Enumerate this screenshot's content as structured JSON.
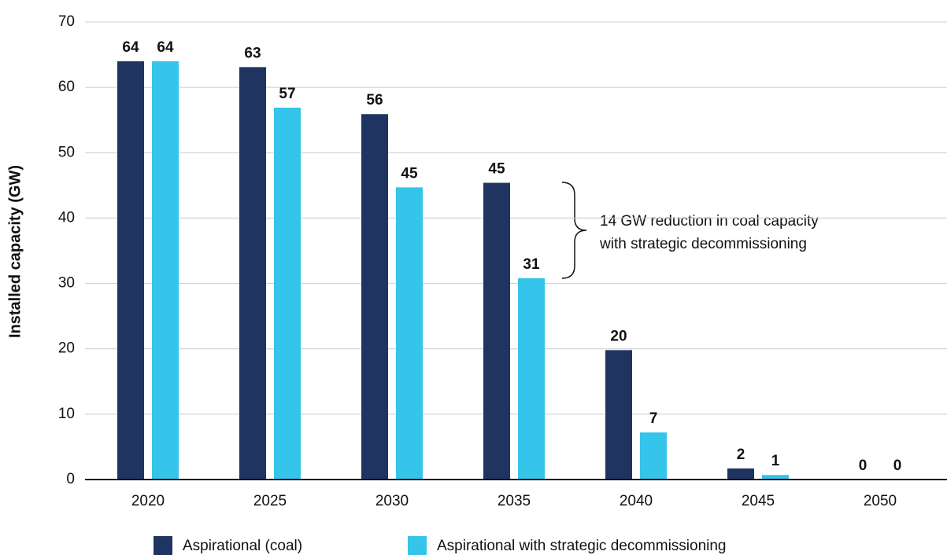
{
  "chart_data": {
    "type": "bar",
    "y_axis_label": "Installed capacity (GW)",
    "categories": [
      "2020",
      "2025",
      "2030",
      "2035",
      "2040",
      "2045",
      "2050"
    ],
    "series": [
      {
        "name": "Aspirational (coal)",
        "color": "#1f3461",
        "values": [
          64,
          63.1,
          55.9,
          45.4,
          19.8,
          1.7,
          0
        ],
        "value_labels": [
          "64",
          "63",
          "56",
          "45",
          "20",
          "2",
          "0"
        ]
      },
      {
        "name": "Aspirational with strategic decommissioning",
        "color": "#35c4ea",
        "values": [
          64,
          56.9,
          44.7,
          30.8,
          7.2,
          0.7,
          0
        ],
        "value_labels": [
          "64",
          "57",
          "45",
          "31",
          "7",
          "1",
          "0"
        ]
      }
    ],
    "annotation": [
      "14 GW reduction in coal capacity",
      "with strategic decommissioning"
    ],
    "ylim": [
      0,
      70
    ],
    "yticks": [
      0,
      10,
      20,
      30,
      40,
      50,
      60,
      70
    ],
    "grid": true,
    "legend": "bottom"
  }
}
